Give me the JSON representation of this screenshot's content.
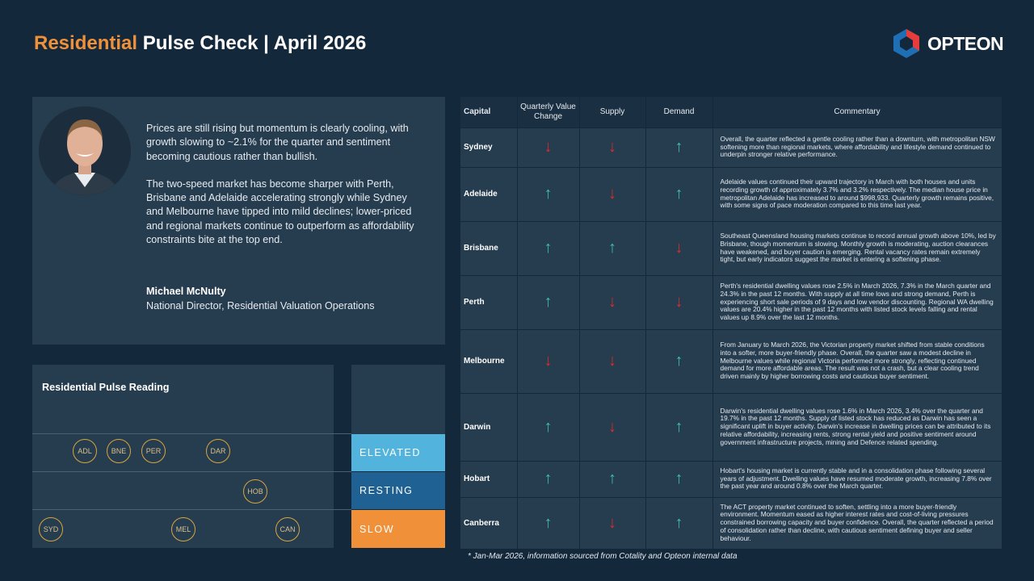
{
  "header": {
    "title_accent": "Residential",
    "title_rest": " Pulse Check | April 2026",
    "logo_text": "OPTEON",
    "logo_icon": "opteon-hexagon-logo"
  },
  "quote": {
    "paragraph1": "Prices are still rising but momentum is clearly cooling, with growth slowing to ~2.1% for the quarter and sentiment becoming cautious rather than bullish.",
    "paragraph2": "The two-speed market has become sharper with Perth, Brisbane and Adelaide accelerating strongly while Sydney and Melbourne have tipped into mild declines; lower-priced and regional markets continue to outperform as affordability constraints bite at the top end.",
    "author_name": "Michael McNulty",
    "author_role": "National Director, Residential Valuation Operations"
  },
  "pulse": {
    "title": "Residential Pulse Reading",
    "levels": [
      "ELEVATED",
      "RESTING",
      "SLOW"
    ],
    "level_colors": [
      "#52b4dc",
      "#1f6193",
      "#f0913a"
    ],
    "elevated": [
      "ADL",
      "BNE",
      "PER",
      "DAR"
    ],
    "resting": [
      "HOB"
    ],
    "slow": [
      "SYD",
      "MEL",
      "CAN"
    ]
  },
  "table": {
    "headers": [
      "Capital",
      "Quarterly Value Change",
      "Supply",
      "Demand",
      "Commentary"
    ],
    "up_color": "#3fbfa6",
    "down_color": "#d92d2d",
    "rows": [
      {
        "capital": "Sydney",
        "value": "down",
        "supply": "down",
        "demand": "up",
        "commentary": "Overall, the quarter reflected a gentle cooling rather than a downturn, with metropolitan NSW softening more than regional markets, where affordability and lifestyle demand continued to underpin stronger relative performance."
      },
      {
        "capital": "Adelaide",
        "value": "up",
        "supply": "down",
        "demand": "up",
        "commentary": "Adelaide values continued their upward trajectory in March with both houses and units recording growth of approximately 3.7% and 3.2% respectively.  The median house price in metropolitan Adelaide has increased to around $998,933. Quarterly growth remains positive, with some signs of pace moderation compared to this time last year."
      },
      {
        "capital": "Brisbane",
        "value": "up",
        "supply": "up",
        "demand": "down",
        "commentary": "Southeast Queensland housing markets continue to record annual growth above 10%, led by Brisbane, though momentum is slowing. Monthly growth is moderating, auction clearances have weakened, and buyer caution is emerging. Rental vacancy rates remain extremely tight, but early indicators suggest the market is entering a softening phase."
      },
      {
        "capital": "Perth",
        "value": "up",
        "supply": "down",
        "demand": "down",
        "commentary": "Perth's residential dwelling values rose 2.5% in March 2026, 7.3% in the March quarter and 24.3% in the past 12 months. With supply at all time lows and strong demand, Perth is experiencing short sale periods of 9 days and low vendor discounting. Regional WA dwelling values are 20.4% higher in the past 12 months with listed stock levels falling  and rental values up 8.9% over the last 12 months."
      },
      {
        "capital": "Melbourne",
        "value": "down",
        "supply": "down",
        "demand": "up",
        "commentary": "From January to March 2026, the Victorian property market shifted from stable conditions into a softer, more buyer-friendly phase. Overall, the quarter saw a modest decline in Melbourne values while regional Victoria performed more strongly, reflecting continued demand for more affordable areas. The result was not a crash, but a clear cooling trend driven mainly by higher borrowing costs and cautious buyer sentiment."
      },
      {
        "capital": "Darwin",
        "value": "up",
        "supply": "down",
        "demand": "up",
        "commentary": "Darwin's residential dwelling values rose 1.6% in March 2026, 3.4% over the quarter and 19.7% in the past 12 months. Supply of listed stock has reduced as Darwin has seen a significant uplift in buyer activity. Darwin's increase in dwelling prices can be attributed to its relative affordability,  increasing rents, strong rental yield and positive sentiment around government infrastructure projects, mining and Defence related spending."
      },
      {
        "capital": "Hobart",
        "value": "up",
        "supply": "up",
        "demand": "up",
        "commentary": "Hobart's housing market is currently stable and in a consolidation phase following several years of adjustment. Dwelling values have resumed moderate growth, increasing 7.8% over the past year and around 0.8% over the March quarter."
      },
      {
        "capital": "Canberra",
        "value": "up",
        "supply": "down",
        "demand": "up",
        "commentary": "The ACT property market continued to soften, settling into a more buyer-friendly environment. Momentum eased as higher interest rates and cost-of-living pressures constrained borrowing capacity and buyer confidence. Overall, the quarter reflected a period of consolidation rather than decline, with cautious sentiment defining buyer and seller behaviour."
      }
    ]
  },
  "footnote": "* Jan-Mar 2026, information sourced from Cotality and Opteon internal data"
}
